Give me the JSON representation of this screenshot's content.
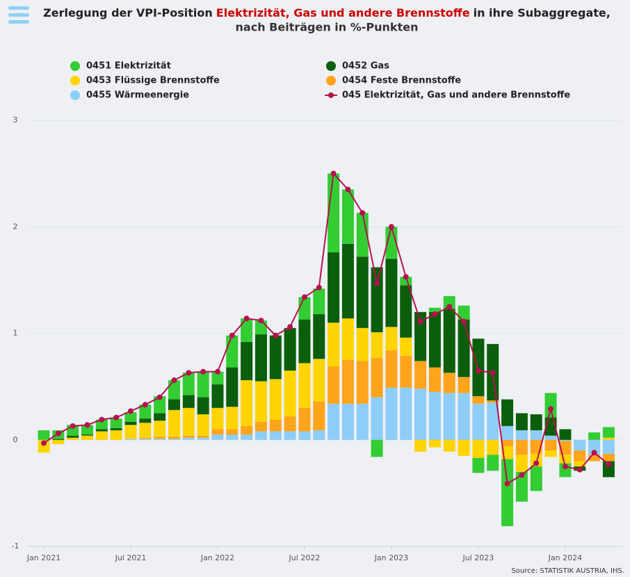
{
  "chart_data": {
    "type": "bar",
    "stacked": true,
    "title": [
      "Zerlegung der VPI-Position",
      "Elektrizität, Gas und andere Brennstoffe",
      "in ihre Subaggregate,",
      "nach Beiträgen in %-Punkten"
    ],
    "source": "Source: STATISTIK AUSTRIA, IHS.",
    "categories": [
      "Jan 2021",
      null,
      null,
      null,
      null,
      null,
      "Jul 2021",
      null,
      null,
      null,
      null,
      null,
      "Jan 2022",
      null,
      null,
      null,
      null,
      null,
      "Jul 2022",
      null,
      null,
      null,
      null,
      null,
      "Jan 2023",
      null,
      null,
      null,
      null,
      null,
      "Jul 2023",
      null,
      null,
      null,
      null,
      null,
      "Jan 2024",
      null,
      null,
      null
    ],
    "ylim": [
      -1,
      3
    ],
    "yticks": [
      -1,
      0,
      1,
      2,
      3
    ],
    "grid": true,
    "series": [
      {
        "name": "0451 Elektrizität",
        "color": "#33cc33",
        "values": [
          0.09,
          0.08,
          0.1,
          0.09,
          0.09,
          0.09,
          0.09,
          0.13,
          0.16,
          0.18,
          0.21,
          0.24,
          0.12,
          0.3,
          0.22,
          0.13,
          0.0,
          0.0,
          0.21,
          0.24,
          0.74,
          0.51,
          0.41,
          -0.16,
          0.3,
          0.08,
          0.0,
          0.04,
          0.12,
          0.13,
          -0.14,
          -0.15,
          -0.63,
          -0.28,
          -0.23,
          0.23,
          -0.13,
          0.0,
          0.07,
          0.1
        ]
      },
      {
        "name": "0452 Gas",
        "color": "#0b5e0b",
        "values": [
          0.0,
          0.01,
          0.02,
          0.01,
          0.02,
          0.02,
          0.03,
          0.04,
          0.07,
          0.1,
          0.12,
          0.16,
          0.22,
          0.37,
          0.36,
          0.44,
          0.41,
          0.4,
          0.41,
          0.42,
          0.66,
          0.7,
          0.67,
          0.61,
          0.64,
          0.49,
          0.46,
          0.52,
          0.6,
          0.54,
          0.54,
          0.53,
          0.25,
          0.16,
          0.15,
          0.17,
          0.1,
          -0.04,
          0.0,
          -0.15
        ]
      },
      {
        "name": "0453 Flüssige Brennstoffe",
        "color": "#ffd400",
        "values": [
          -0.12,
          -0.04,
          0.02,
          0.04,
          0.08,
          0.09,
          0.13,
          0.14,
          0.15,
          0.25,
          0.26,
          0.2,
          0.2,
          0.21,
          0.43,
          0.38,
          0.38,
          0.43,
          0.42,
          0.4,
          0.41,
          0.39,
          0.31,
          0.24,
          0.22,
          0.17,
          -0.11,
          -0.07,
          -0.11,
          -0.15,
          -0.17,
          -0.14,
          -0.12,
          -0.16,
          -0.12,
          -0.06,
          -0.08,
          -0.05,
          0.0,
          0.02
        ]
      },
      {
        "name": "0454 Feste Brennstoffe",
        "color": "#ffa41b",
        "values": [
          0.0,
          0.0,
          0.0,
          0.0,
          0.0,
          0.0,
          0.0,
          0.01,
          0.02,
          0.02,
          0.02,
          0.02,
          0.05,
          0.05,
          0.08,
          0.09,
          0.11,
          0.14,
          0.22,
          0.27,
          0.35,
          0.41,
          0.4,
          0.37,
          0.35,
          0.3,
          0.26,
          0.23,
          0.19,
          0.15,
          0.07,
          0.02,
          -0.06,
          -0.14,
          -0.13,
          -0.1,
          -0.13,
          -0.1,
          -0.06,
          -0.07
        ]
      },
      {
        "name": "0455 Wärmeenergie",
        "color": "#8dcdf7",
        "values": [
          0.0,
          0.0,
          0.0,
          0.0,
          0.0,
          0.0,
          0.01,
          0.01,
          0.01,
          0.01,
          0.02,
          0.02,
          0.05,
          0.05,
          0.05,
          0.08,
          0.08,
          0.08,
          0.08,
          0.09,
          0.34,
          0.34,
          0.34,
          0.4,
          0.49,
          0.49,
          0.48,
          0.45,
          0.44,
          0.44,
          0.34,
          0.35,
          0.13,
          0.09,
          0.09,
          0.04,
          -0.01,
          -0.1,
          -0.14,
          -0.13
        ]
      },
      {
        "name": "045 Elektrizität, Gas und andere Brennstoffe",
        "type": "line",
        "color": "#b5104e",
        "values": [
          -0.03,
          0.06,
          0.13,
          0.14,
          0.19,
          0.21,
          0.27,
          0.33,
          0.4,
          0.56,
          0.63,
          0.64,
          0.64,
          0.98,
          1.14,
          1.12,
          0.98,
          1.06,
          1.34,
          1.43,
          2.5,
          2.35,
          2.13,
          1.47,
          2.0,
          1.53,
          1.11,
          1.18,
          1.25,
          1.11,
          0.65,
          0.63,
          -0.41,
          -0.33,
          -0.22,
          0.29,
          -0.25,
          -0.28,
          -0.12,
          -0.23
        ]
      }
    ]
  }
}
